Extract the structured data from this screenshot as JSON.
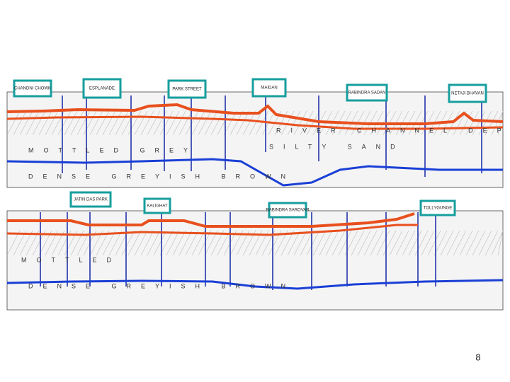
{
  "top_section": {
    "stations": [
      "CHANDNI CHOWK",
      "ESPLANADE",
      "PARK STREET",
      "MAIDAN",
      "RABINDRA SADAN",
      "NETAJI BHAVAN"
    ],
    "layers": [
      "MOTTLED GREY",
      "DENSE GREYISH BROWN",
      "RIVER CHANNEL DEPOSIT",
      "SILTY SAND"
    ]
  },
  "bottom_section": {
    "stations": [
      "JATIN DAS PARK",
      "KALIGHAT",
      "RABINDRA SAROVAR",
      "TOLLYGUNGE"
    ],
    "layers": [
      "MOTTLED",
      "DENSE GREYISH BROWN"
    ]
  },
  "page_number": "8"
}
